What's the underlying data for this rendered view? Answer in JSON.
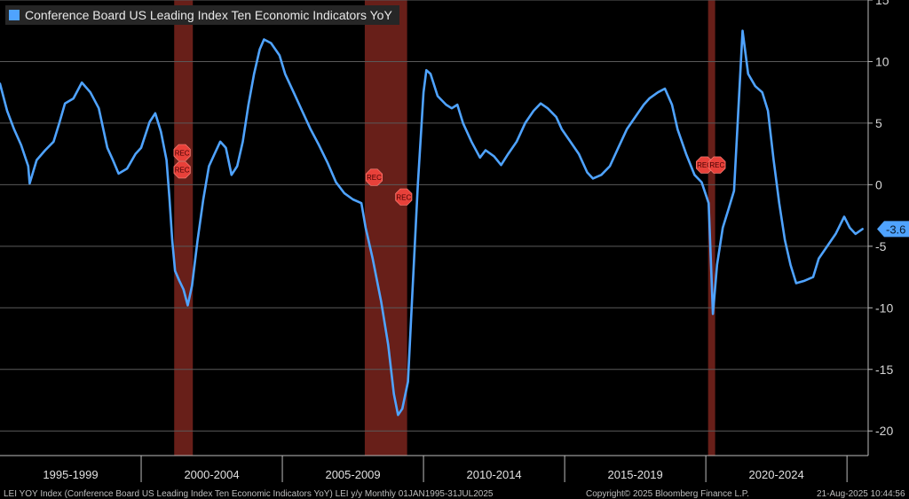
{
  "legend": {
    "label": "Conference Board US Leading Index Ten Economic Indicators YoY",
    "swatch_color": "#4fa3ff"
  },
  "footer": {
    "left": "LEI YOY Index (Conference Board US Leading Index Ten Economic Indicators YoY) LEI y/y Monthly 01JAN1995-31JUL2025",
    "middle": "Copyright© 2025 Bloomberg Finance L.P.",
    "right": "21-Aug-2025 10:44:56"
  },
  "chart_data": {
    "type": "line",
    "ylim": [
      -22,
      15
    ],
    "xlim": [
      1995.0,
      2025.75
    ],
    "yticks": [
      15,
      10,
      5,
      0,
      -5,
      -10,
      -15,
      -20
    ],
    "xtick_labels": [
      {
        "label": "1995-1999",
        "center": 1997.5
      },
      {
        "label": "2000-2004",
        "center": 2002.5
      },
      {
        "label": "2005-2009",
        "center": 2007.5
      },
      {
        "label": "2010-2014",
        "center": 2012.5
      },
      {
        "label": "2015-2019",
        "center": 2017.5
      },
      {
        "label": "2020-2024",
        "center": 2022.5
      }
    ],
    "x_period_boundaries": [
      2000.0,
      2005.0,
      2010.0,
      2015.0,
      2020.0,
      2025.0
    ],
    "grid": true,
    "line_color": "#4fa3ff",
    "last_value_label": "-3.6",
    "recession_color": "#8b2a22",
    "recessions": [
      {
        "start": 2001.17,
        "end": 2001.83
      },
      {
        "start": 2007.92,
        "end": 2009.42
      },
      {
        "start": 2020.08,
        "end": 2020.33
      }
    ],
    "rec_label": "REC",
    "rec_markers": [
      {
        "x": 2001.45,
        "y": 2.6
      },
      {
        "x": 2001.45,
        "y": 1.2
      },
      {
        "x": 2008.25,
        "y": 0.6
      },
      {
        "x": 2009.3,
        "y": -1.0
      },
      {
        "x": 2019.95,
        "y": 1.6
      },
      {
        "x": 2020.4,
        "y": 1.6
      }
    ],
    "series": [
      {
        "values": [
          [
            1995.0,
            8.2
          ],
          [
            1995.25,
            6.0
          ],
          [
            1995.5,
            4.5
          ],
          [
            1995.75,
            3.2
          ],
          [
            1996.0,
            1.5
          ],
          [
            1996.05,
            0.1
          ],
          [
            1996.3,
            2.0
          ],
          [
            1996.6,
            2.8
          ],
          [
            1996.9,
            3.5
          ],
          [
            1997.1,
            5.0
          ],
          [
            1997.3,
            6.6
          ],
          [
            1997.6,
            7.0
          ],
          [
            1997.9,
            8.3
          ],
          [
            1998.2,
            7.5
          ],
          [
            1998.5,
            6.2
          ],
          [
            1998.8,
            3.0
          ],
          [
            1999.0,
            2.0
          ],
          [
            1999.2,
            0.9
          ],
          [
            1999.5,
            1.3
          ],
          [
            1999.8,
            2.5
          ],
          [
            2000.0,
            3.0
          ],
          [
            2000.3,
            5.1
          ],
          [
            2000.5,
            5.8
          ],
          [
            2000.7,
            4.3
          ],
          [
            2000.9,
            2.0
          ],
          [
            2001.0,
            -1.0
          ],
          [
            2001.1,
            -4.5
          ],
          [
            2001.2,
            -7.0
          ],
          [
            2001.35,
            -7.8
          ],
          [
            2001.5,
            -8.5
          ],
          [
            2001.65,
            -9.8
          ],
          [
            2001.8,
            -8.2
          ],
          [
            2002.0,
            -4.5
          ],
          [
            2002.2,
            -1.2
          ],
          [
            2002.4,
            1.5
          ],
          [
            2002.6,
            2.5
          ],
          [
            2002.8,
            3.5
          ],
          [
            2003.0,
            3.0
          ],
          [
            2003.2,
            0.8
          ],
          [
            2003.4,
            1.5
          ],
          [
            2003.6,
            3.5
          ],
          [
            2003.8,
            6.5
          ],
          [
            2004.0,
            9.0
          ],
          [
            2004.2,
            11.0
          ],
          [
            2004.35,
            11.8
          ],
          [
            2004.6,
            11.5
          ],
          [
            2004.9,
            10.5
          ],
          [
            2005.1,
            9.0
          ],
          [
            2005.4,
            7.5
          ],
          [
            2005.7,
            6.0
          ],
          [
            2006.0,
            4.5
          ],
          [
            2006.3,
            3.2
          ],
          [
            2006.6,
            1.8
          ],
          [
            2006.9,
            0.2
          ],
          [
            2007.2,
            -0.7
          ],
          [
            2007.5,
            -1.2
          ],
          [
            2007.8,
            -1.5
          ],
          [
            2007.95,
            -3.5
          ],
          [
            2008.2,
            -6.0
          ],
          [
            2008.5,
            -9.5
          ],
          [
            2008.75,
            -13.0
          ],
          [
            2008.95,
            -17.0
          ],
          [
            2009.1,
            -18.7
          ],
          [
            2009.25,
            -18.2
          ],
          [
            2009.45,
            -16.0
          ],
          [
            2009.6,
            -9.0
          ],
          [
            2009.8,
            0.0
          ],
          [
            2010.0,
            7.5
          ],
          [
            2010.1,
            9.3
          ],
          [
            2010.25,
            9.0
          ],
          [
            2010.5,
            7.2
          ],
          [
            2010.8,
            6.5
          ],
          [
            2011.0,
            6.2
          ],
          [
            2011.2,
            6.5
          ],
          [
            2011.4,
            5.0
          ],
          [
            2011.7,
            3.5
          ],
          [
            2012.0,
            2.2
          ],
          [
            2012.2,
            2.8
          ],
          [
            2012.5,
            2.3
          ],
          [
            2012.75,
            1.6
          ],
          [
            2013.0,
            2.5
          ],
          [
            2013.3,
            3.5
          ],
          [
            2013.6,
            5.0
          ],
          [
            2013.9,
            6.0
          ],
          [
            2014.15,
            6.6
          ],
          [
            2014.4,
            6.2
          ],
          [
            2014.7,
            5.5
          ],
          [
            2014.9,
            4.5
          ],
          [
            2015.2,
            3.5
          ],
          [
            2015.5,
            2.5
          ],
          [
            2015.8,
            1.0
          ],
          [
            2016.0,
            0.5
          ],
          [
            2016.3,
            0.8
          ],
          [
            2016.6,
            1.5
          ],
          [
            2016.9,
            3.0
          ],
          [
            2017.2,
            4.5
          ],
          [
            2017.5,
            5.5
          ],
          [
            2017.8,
            6.5
          ],
          [
            2018.0,
            7.0
          ],
          [
            2018.3,
            7.5
          ],
          [
            2018.55,
            7.8
          ],
          [
            2018.8,
            6.5
          ],
          [
            2019.0,
            4.5
          ],
          [
            2019.3,
            2.5
          ],
          [
            2019.6,
            0.8
          ],
          [
            2019.85,
            0.2
          ],
          [
            2020.1,
            -1.5
          ],
          [
            2020.25,
            -10.5
          ],
          [
            2020.4,
            -6.5
          ],
          [
            2020.6,
            -3.5
          ],
          [
            2020.8,
            -2.0
          ],
          [
            2021.0,
            -0.5
          ],
          [
            2021.15,
            6.0
          ],
          [
            2021.3,
            12.5
          ],
          [
            2021.5,
            9.0
          ],
          [
            2021.75,
            8.0
          ],
          [
            2022.0,
            7.5
          ],
          [
            2022.2,
            6.0
          ],
          [
            2022.4,
            2.0
          ],
          [
            2022.6,
            -1.5
          ],
          [
            2022.8,
            -4.5
          ],
          [
            2023.0,
            -6.5
          ],
          [
            2023.2,
            -8.0
          ],
          [
            2023.5,
            -7.8
          ],
          [
            2023.8,
            -7.5
          ],
          [
            2024.0,
            -6.0
          ],
          [
            2024.3,
            -5.0
          ],
          [
            2024.6,
            -4.0
          ],
          [
            2024.9,
            -2.6
          ],
          [
            2025.1,
            -3.5
          ],
          [
            2025.3,
            -4.0
          ],
          [
            2025.55,
            -3.6
          ]
        ]
      }
    ]
  }
}
